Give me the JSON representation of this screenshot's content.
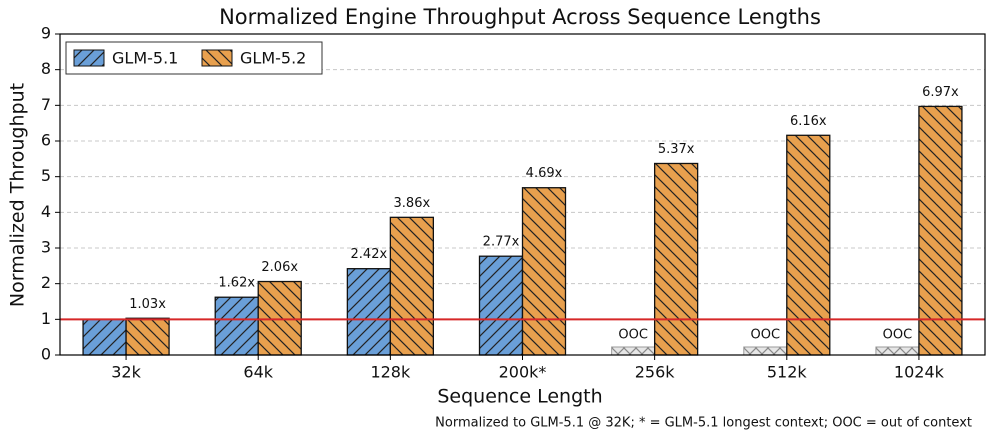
{
  "chart_data": {
    "type": "bar",
    "title": "Normalized Engine Throughput Across Sequence Lengths",
    "x_label": "Sequence Length",
    "y_label": "Normalized Throughput",
    "categories": [
      "32k",
      "64k",
      "128k",
      "200k*",
      "256k",
      "512k",
      "1024k"
    ],
    "series": [
      {
        "name": "GLM-5.1",
        "color": "#6a9fd8",
        "hatch": "/",
        "values": [
          1.0,
          1.62,
          2.42,
          2.77,
          null,
          null,
          null
        ],
        "value_labels": [
          null,
          "1.62x",
          "2.42x",
          "2.77x",
          "OOC",
          "OOC",
          "OOC"
        ]
      },
      {
        "name": "GLM-5.2",
        "color": "#e8a04e",
        "hatch": "\\",
        "values": [
          1.03,
          2.06,
          3.86,
          4.69,
          5.37,
          6.16,
          6.97
        ],
        "value_labels": [
          "1.03x",
          "2.06x",
          "3.86x",
          "4.69x",
          "5.37x",
          "6.16x",
          "6.97x"
        ]
      }
    ],
    "ylim": [
      0,
      9
    ],
    "yticks": [
      0,
      1,
      2,
      3,
      4,
      5,
      6,
      7,
      8,
      9
    ],
    "grid": true,
    "reference_line": {
      "value": 1,
      "color": "#d62728"
    },
    "legend": "upper-left",
    "footnote": "Normalized to GLM-5.1 @ 32K; * = GLM-5.1 longest context; OOC = out of context"
  }
}
